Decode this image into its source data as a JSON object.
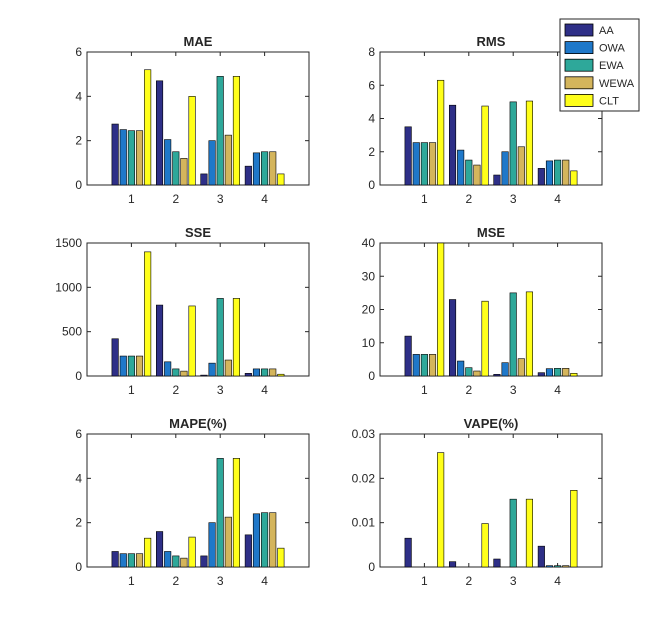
{
  "legend": {
    "entries": [
      {
        "name": "AA",
        "color": "#2e2f87"
      },
      {
        "name": "OWA",
        "color": "#1f78c9"
      },
      {
        "name": "EWA",
        "color": "#2ea89a"
      },
      {
        "name": "WEWA",
        "color": "#d4b55c"
      },
      {
        "name": "CLT",
        "color": "#ffff1a"
      }
    ],
    "location": "top-right"
  },
  "chart_data": [
    {
      "type": "bar",
      "title": "MAE",
      "categories": [
        "1",
        "2",
        "3",
        "4"
      ],
      "ylim": [
        0,
        6
      ],
      "yticks": [
        "0",
        "2",
        "4",
        "6"
      ],
      "series": [
        {
          "name": "AA",
          "values": [
            2.75,
            4.7,
            0.5,
            0.85
          ]
        },
        {
          "name": "OWA",
          "values": [
            2.5,
            2.05,
            2.0,
            1.45
          ]
        },
        {
          "name": "EWA",
          "values": [
            2.45,
            1.5,
            4.9,
            1.5
          ]
        },
        {
          "name": "WEWA",
          "values": [
            2.45,
            1.2,
            2.25,
            1.5
          ]
        },
        {
          "name": "CLT",
          "values": [
            5.2,
            4.0,
            4.9,
            0.5
          ]
        }
      ]
    },
    {
      "type": "bar",
      "title": "RMS",
      "categories": [
        "1",
        "2",
        "3",
        "4"
      ],
      "ylim": [
        0,
        8
      ],
      "yticks": [
        "0",
        "2",
        "4",
        "6",
        "8"
      ],
      "series": [
        {
          "name": "AA",
          "values": [
            3.5,
            4.8,
            0.6,
            1.0
          ]
        },
        {
          "name": "OWA",
          "values": [
            2.55,
            2.1,
            2.0,
            1.45
          ]
        },
        {
          "name": "EWA",
          "values": [
            2.55,
            1.5,
            5.0,
            1.5
          ]
        },
        {
          "name": "WEWA",
          "values": [
            2.55,
            1.2,
            2.3,
            1.5
          ]
        },
        {
          "name": "CLT",
          "values": [
            6.3,
            4.75,
            5.05,
            0.85
          ]
        }
      ]
    },
    {
      "type": "bar",
      "title": "SSE",
      "categories": [
        "1",
        "2",
        "3",
        "4"
      ],
      "ylim": [
        0,
        1500
      ],
      "yticks": [
        "0",
        "500",
        "1000",
        "1500"
      ],
      "series": [
        {
          "name": "AA",
          "values": [
            420,
            800,
            10,
            30
          ]
        },
        {
          "name": "OWA",
          "values": [
            225,
            160,
            145,
            80
          ]
        },
        {
          "name": "EWA",
          "values": [
            225,
            80,
            875,
            80
          ]
        },
        {
          "name": "WEWA",
          "values": [
            225,
            55,
            180,
            80
          ]
        },
        {
          "name": "CLT",
          "values": [
            1400,
            790,
            875,
            20
          ]
        }
      ]
    },
    {
      "type": "bar",
      "title": "MSE",
      "categories": [
        "1",
        "2",
        "3",
        "4"
      ],
      "ylim": [
        0,
        40
      ],
      "yticks": [
        "0",
        "10",
        "20",
        "30",
        "40"
      ],
      "series": [
        {
          "name": "AA",
          "values": [
            12,
            23,
            0.5,
            1.0
          ]
        },
        {
          "name": "OWA",
          "values": [
            6.5,
            4.5,
            4.0,
            2.2
          ]
        },
        {
          "name": "EWA",
          "values": [
            6.5,
            2.5,
            25,
            2.3
          ]
        },
        {
          "name": "WEWA",
          "values": [
            6.5,
            1.5,
            5.2,
            2.3
          ]
        },
        {
          "name": "CLT",
          "values": [
            40,
            22.5,
            25.3,
            0.8
          ]
        }
      ]
    },
    {
      "type": "bar",
      "title": "MAPE(%)",
      "categories": [
        "1",
        "2",
        "3",
        "4"
      ],
      "ylim": [
        0,
        6
      ],
      "yticks": [
        "0",
        "2",
        "4",
        "6"
      ],
      "series": [
        {
          "name": "AA",
          "values": [
            0.7,
            1.6,
            0.5,
            1.45
          ]
        },
        {
          "name": "OWA",
          "values": [
            0.6,
            0.7,
            2.0,
            2.4
          ]
        },
        {
          "name": "EWA",
          "values": [
            0.6,
            0.5,
            4.9,
            2.45
          ]
        },
        {
          "name": "WEWA",
          "values": [
            0.6,
            0.4,
            2.25,
            2.45
          ]
        },
        {
          "name": "CLT",
          "values": [
            1.3,
            1.35,
            4.9,
            0.85
          ]
        }
      ]
    },
    {
      "type": "bar",
      "title": "VAPE(%)",
      "categories": [
        "1",
        "2",
        "3",
        "4"
      ],
      "ylim": [
        0,
        0.03
      ],
      "yticks": [
        "0",
        "0.01",
        "0.02",
        "0.03"
      ],
      "series": [
        {
          "name": "AA",
          "values": [
            0.0065,
            0.0012,
            0.0018,
            0.0047
          ]
        },
        {
          "name": "OWA",
          "values": [
            0,
            0,
            0,
            0.0003
          ]
        },
        {
          "name": "EWA",
          "values": [
            0,
            0,
            0.0153,
            0.0003
          ]
        },
        {
          "name": "WEWA",
          "values": [
            0,
            0,
            0,
            0.0003
          ]
        },
        {
          "name": "CLT",
          "values": [
            0.0258,
            0.0098,
            0.0153,
            0.0173
          ]
        }
      ]
    }
  ]
}
